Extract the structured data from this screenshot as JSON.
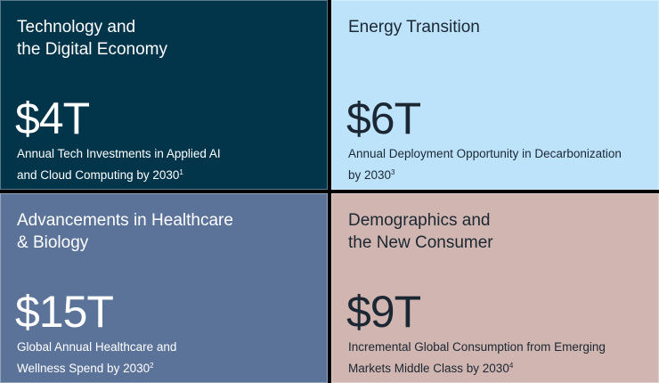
{
  "panels": [
    {
      "title_line1": "Technology and",
      "title_line2": "the Digital Economy",
      "value": "$4T",
      "desc_line1": "Annual Tech Investments in Applied AI",
      "desc_line2": "and Cloud Computing by 2030",
      "footnote": "1"
    },
    {
      "title_line1": "Energy Transition",
      "title_line2": "",
      "value": "$6T",
      "desc_line1": "Annual Deployment Opportunity in Decarbonization",
      "desc_line2": "by 2030",
      "footnote": "3"
    },
    {
      "title_line1": "Advancements in Healthcare",
      "title_line2": "& Biology",
      "value": "$15T",
      "desc_line1": "Global Annual Healthcare and",
      "desc_line2": "Wellness Spend by 2030",
      "footnote": "2"
    },
    {
      "title_line1": "Demographics and",
      "title_line2": "the New Consumer",
      "value": "$9T",
      "desc_line1": "Incremental Global Consumption from Emerging",
      "desc_line2": "Markets Middle Class by 2030",
      "footnote": "4"
    }
  ]
}
